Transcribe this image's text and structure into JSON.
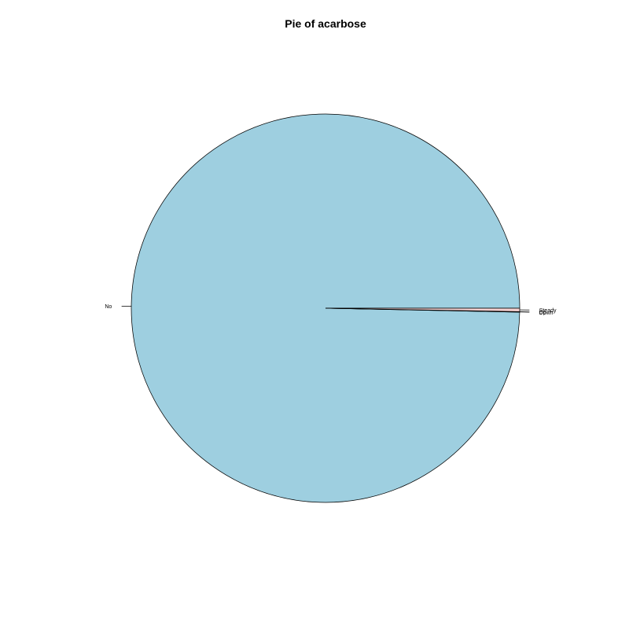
{
  "chart_data": {
    "type": "pie",
    "title": "Pie of acarbose",
    "slices": [
      {
        "label": "No",
        "value": 99.68,
        "color": "#9ecfe0"
      },
      {
        "label": "Down",
        "value": 0.02,
        "color": "#b3dde8"
      },
      {
        "label": "Up",
        "value": 0.02,
        "color": "#c4e3e8"
      },
      {
        "label": "Steady",
        "value": 0.28,
        "color": "#f4cfcf"
      }
    ],
    "start_angle_deg": 0,
    "direction": "counterclockwise"
  }
}
